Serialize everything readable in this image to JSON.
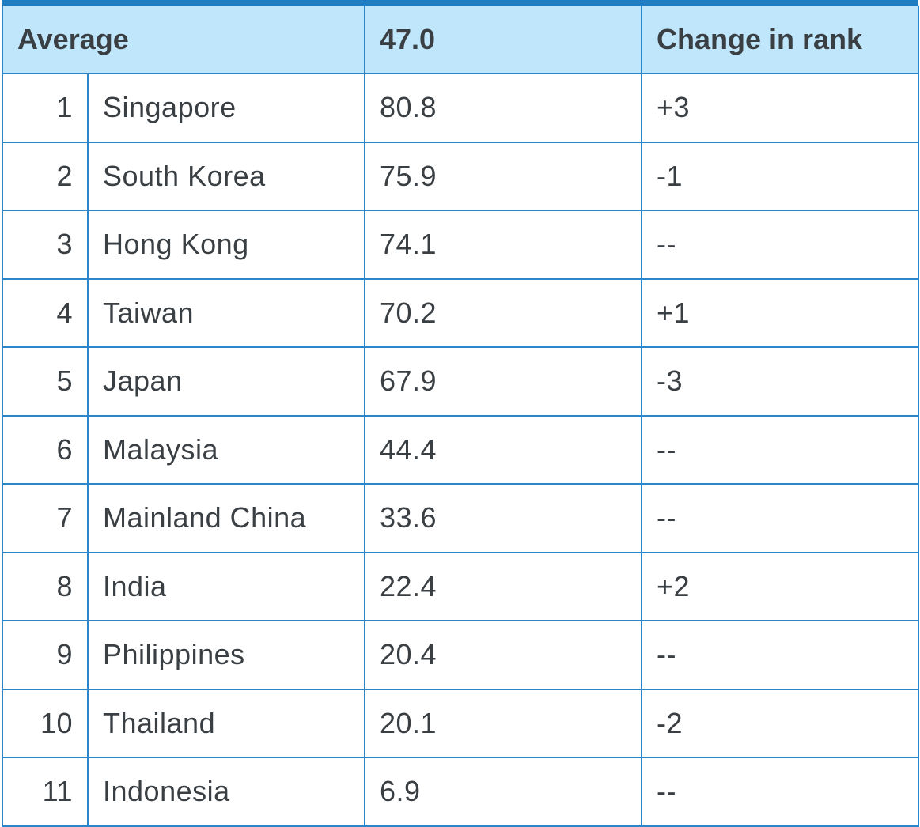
{
  "chart_data": {
    "type": "table",
    "header": {
      "label": "Average",
      "value": "47.0",
      "change_header": "Change in rank"
    },
    "rows": [
      {
        "rank": "1",
        "country": "Singapore",
        "score": "80.8",
        "change": "+3"
      },
      {
        "rank": "2",
        "country": "South Korea",
        "score": "75.9",
        "change": "-1"
      },
      {
        "rank": "3",
        "country": "Hong Kong",
        "score": "74.1",
        "change": "--"
      },
      {
        "rank": "4",
        "country": "Taiwan",
        "score": "70.2",
        "change": "+1"
      },
      {
        "rank": "5",
        "country": "Japan",
        "score": "67.9",
        "change": "-3"
      },
      {
        "rank": "6",
        "country": "Malaysia",
        "score": "44.4",
        "change": "--"
      },
      {
        "rank": "7",
        "country": "Mainland China",
        "score": "33.6",
        "change": "--"
      },
      {
        "rank": "8",
        "country": "India",
        "score": "22.4",
        "change": "+2"
      },
      {
        "rank": "9",
        "country": "Philippines",
        "score": "20.4",
        "change": "--"
      },
      {
        "rank": "10",
        "country": "Thailand",
        "score": "20.1",
        "change": "-2"
      },
      {
        "rank": "11",
        "country": "Indonesia",
        "score": "6.9",
        "change": "--"
      }
    ]
  },
  "colors": {
    "header_background": "#bfe6fa",
    "border": "#2a86c8",
    "top_rule": "#1f7ec3",
    "text": "#3a3f44"
  }
}
